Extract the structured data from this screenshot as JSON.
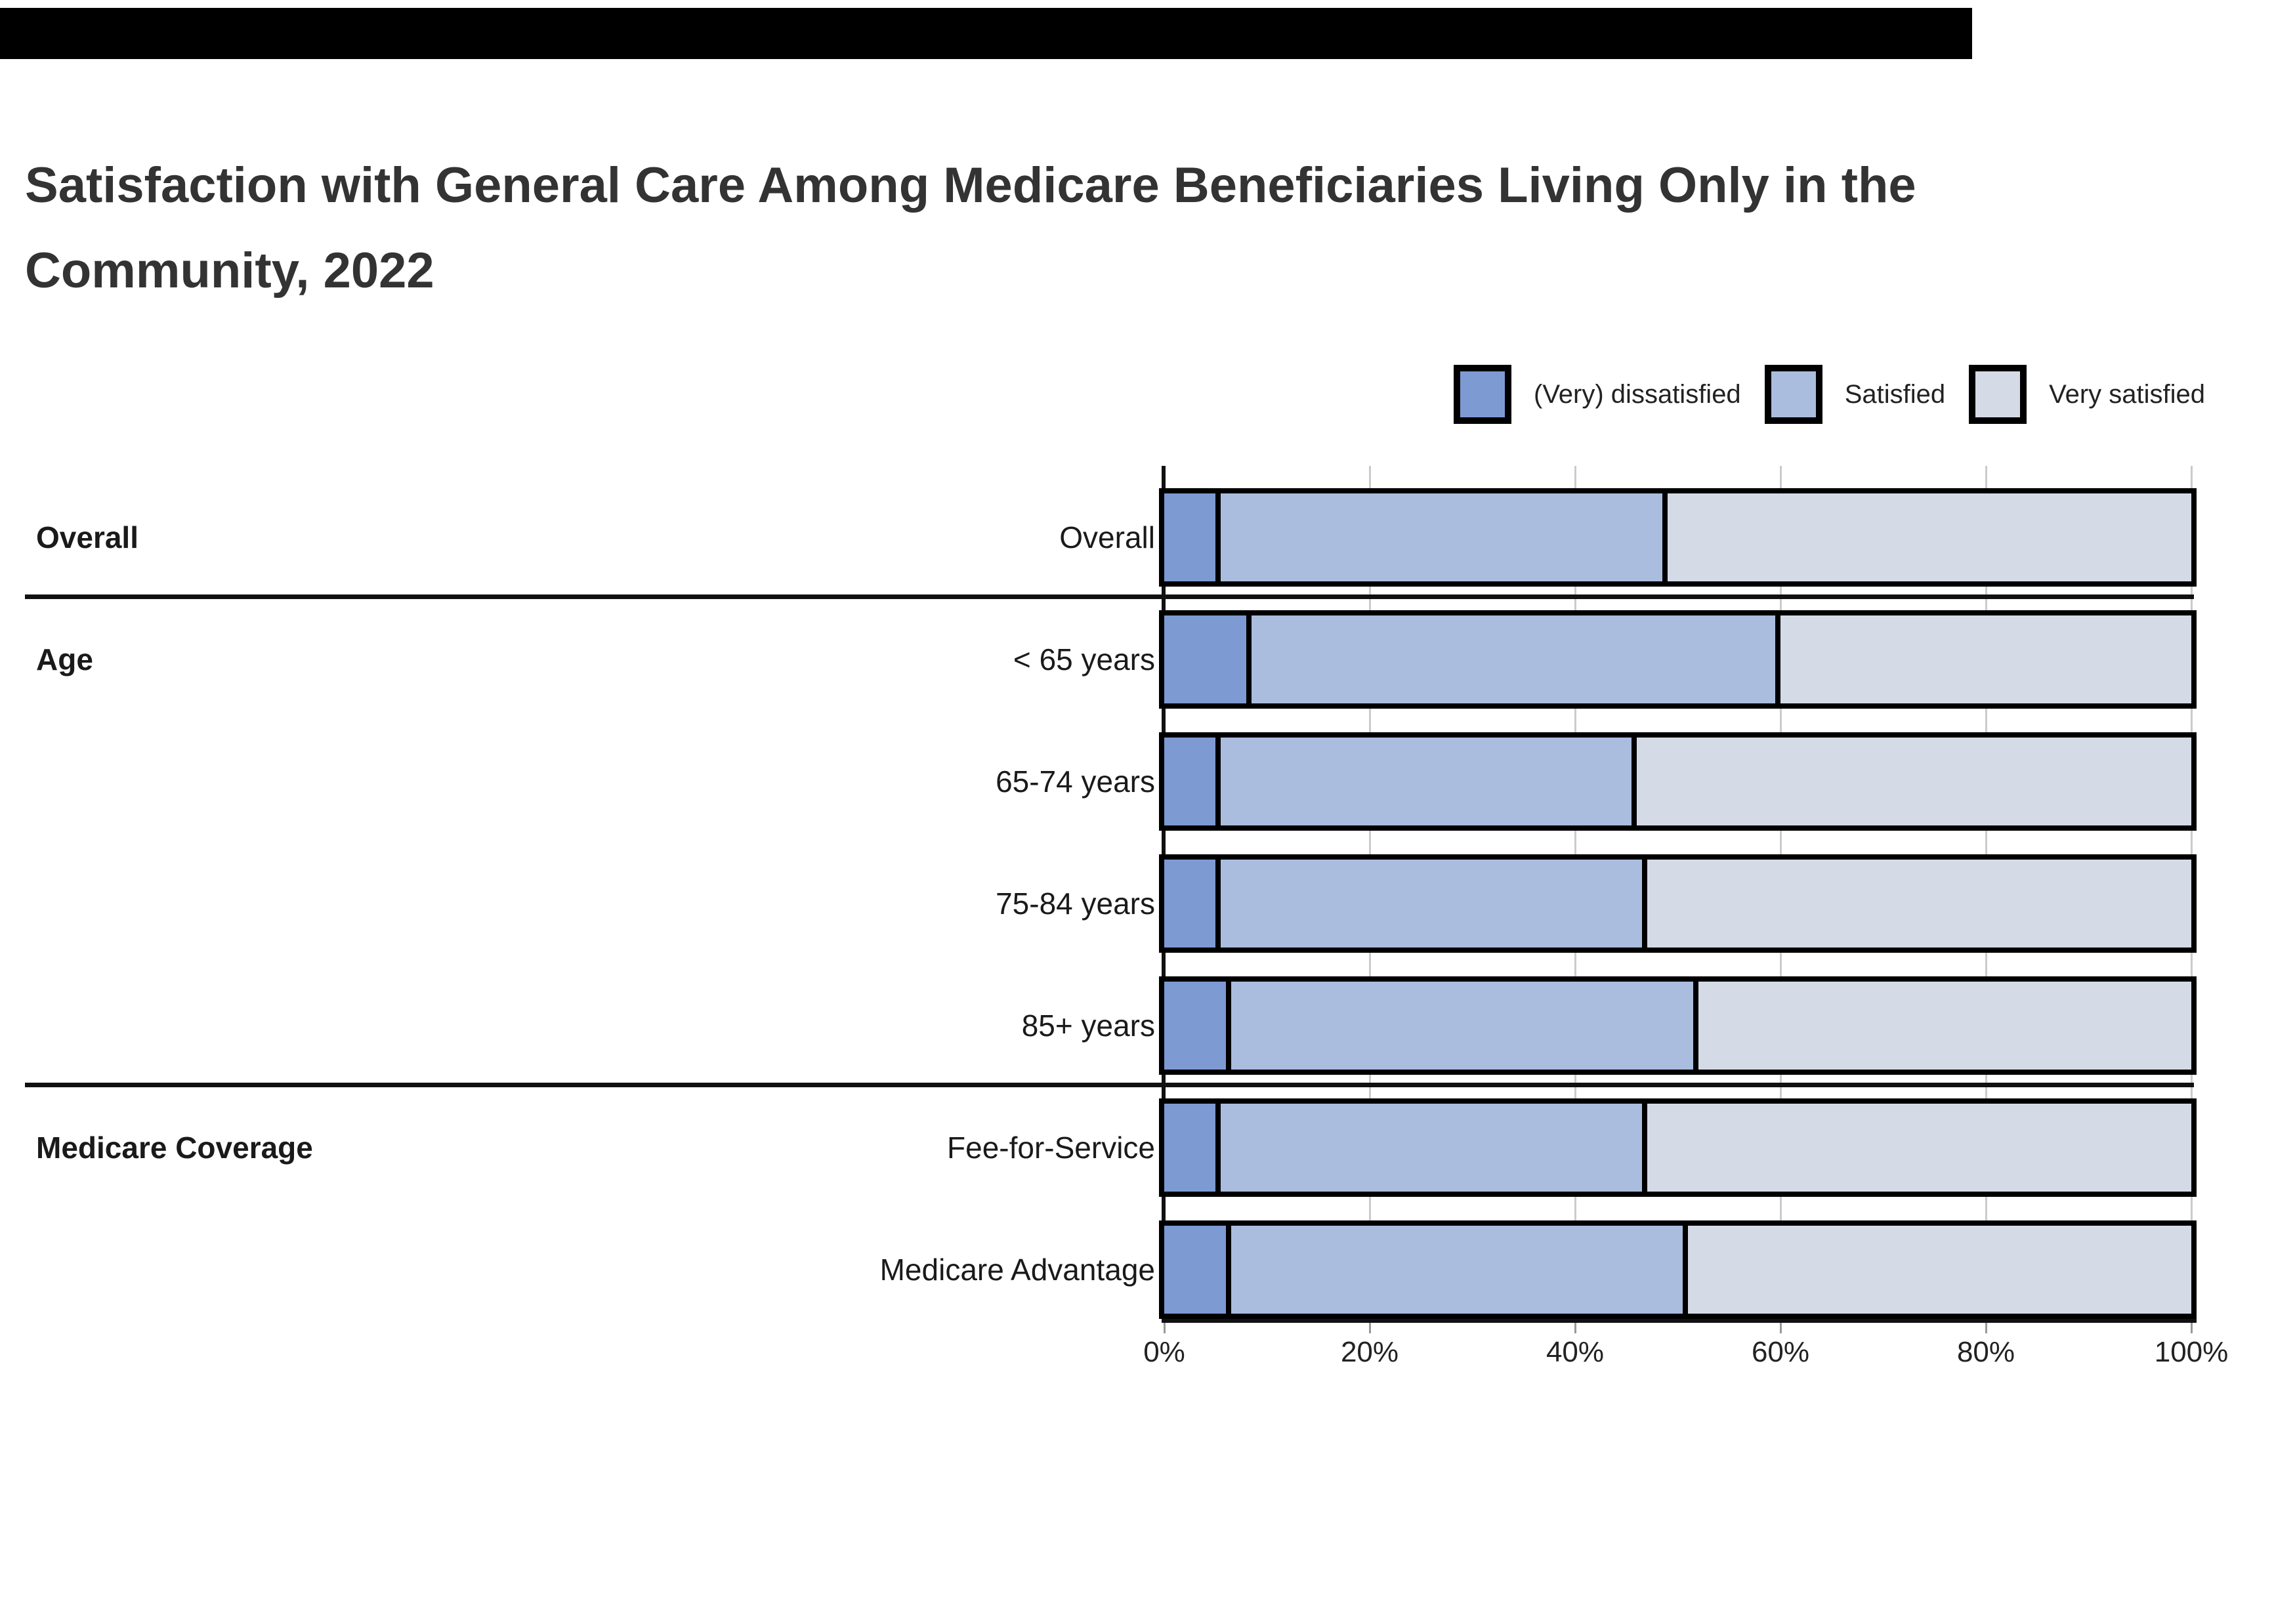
{
  "topbar": {
    "color": "#000000"
  },
  "title": {
    "text": "Satisfaction with General Care Among Medicare Beneficiaries Living Only in the Community, 2022",
    "line1": "Satisfaction with General Care Among Medicare Beneficiaries Living Only in the",
    "line2": "Community, 2022"
  },
  "legend": [
    {
      "label": "(Very) dissatisfied",
      "color": "#7d9ad3"
    },
    {
      "label": "Satisfied",
      "color": "#aabdde"
    },
    {
      "label": "Very satisfied",
      "color": "#d5dbe6"
    }
  ],
  "chart_data": {
    "type": "bar",
    "subtype": "horizontal_stacked_100pct",
    "title": "Satisfaction with General Care Among Medicare Beneficiaries Living Only in the Community, 2022",
    "series": [
      "(Very) dissatisfied",
      "Satisfied",
      "Very satisfied"
    ],
    "colors": [
      "#7d9ad3",
      "#aabdde",
      "#d5dbe6"
    ],
    "x_axis": {
      "tick_labels": [
        "0%",
        "20%",
        "40%",
        "60%",
        "80%",
        "100%"
      ],
      "tick_values": [
        0,
        20,
        40,
        60,
        80,
        100
      ],
      "range": [
        0,
        100
      ],
      "gridlines": true
    },
    "legend_position": "top-right",
    "groups": [
      {
        "label": "Overall",
        "rows": [
          {
            "label": "Overall",
            "values": [
              5,
              44,
              51
            ]
          }
        ]
      },
      {
        "label": "Age",
        "rows": [
          {
            "label": "< 65 years",
            "values": [
              8,
              52,
              40
            ]
          },
          {
            "label": "65-74 years",
            "values": [
              5,
              41,
              54
            ]
          },
          {
            "label": "75-84 years",
            "values": [
              5,
              42,
              53
            ]
          },
          {
            "label": "85+ years",
            "values": [
              6,
              46,
              48
            ]
          }
        ]
      },
      {
        "label": "Medicare Coverage",
        "rows": [
          {
            "label": "Fee-for-Service",
            "values": [
              5,
              42,
              53
            ]
          },
          {
            "label": "Medicare Advantage",
            "values": [
              6,
              45,
              49
            ]
          }
        ]
      }
    ]
  }
}
